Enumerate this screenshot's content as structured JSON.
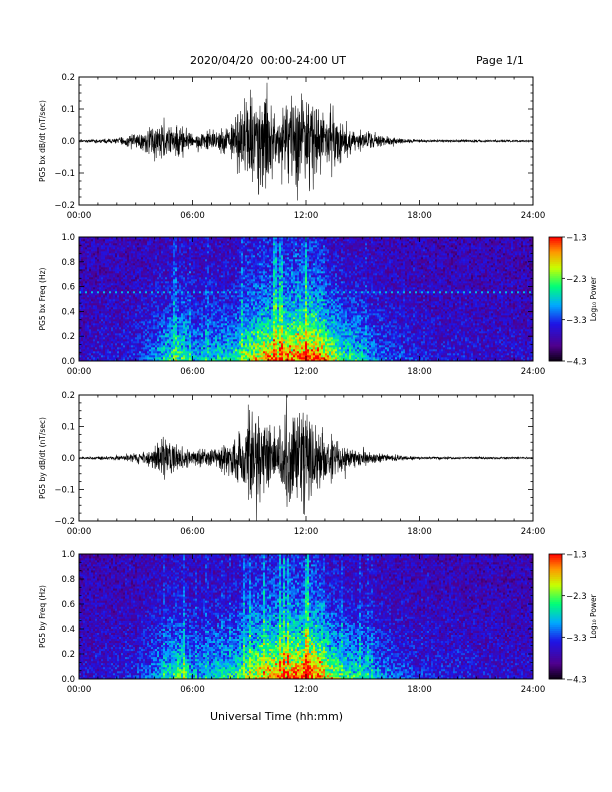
{
  "header": {
    "title": "2020/04/20  00:00-24:00 UT",
    "page": "Page 1/1"
  },
  "footer": {
    "xlabel": "Universal Time (hh:mm)"
  },
  "chart_data": [
    {
      "type": "line",
      "ylabel": "PG5 bx dB/dt (nT/sec)",
      "ylim": [
        -0.2,
        0.2
      ],
      "yticks": [
        "0.2",
        "0.1",
        "0.0",
        "-0.1",
        "-0.2"
      ],
      "xlim": [
        0,
        24
      ],
      "xticks": [
        "00:00",
        "06:00",
        "12:00",
        "18:00",
        "24:00"
      ],
      "envelope_hours": [
        0,
        2,
        3,
        4,
        4.5,
        5,
        5.5,
        6,
        7,
        8,
        8.5,
        9,
        9.5,
        10,
        10.5,
        11,
        11.5,
        12,
        12.5,
        13,
        13.5,
        14,
        15,
        16,
        17,
        18,
        24
      ],
      "envelope_amplitude": [
        0.005,
        0.01,
        0.03,
        0.05,
        0.07,
        0.06,
        0.06,
        0.03,
        0.04,
        0.06,
        0.12,
        0.19,
        0.2,
        0.17,
        0.08,
        0.14,
        0.18,
        0.19,
        0.15,
        0.1,
        0.12,
        0.07,
        0.04,
        0.02,
        0.01,
        0.005,
        0.004
      ]
    },
    {
      "type": "heatmap",
      "ylabel": "PG5 bx Freq (Hz)",
      "ylim": [
        0,
        1.0
      ],
      "yticks": [
        "1.0",
        "0.8",
        "0.6",
        "0.4",
        "0.2",
        "0.0"
      ],
      "xlim": [
        0,
        24
      ],
      "xticks": [
        "00:00",
        "06:00",
        "12:00",
        "18:00",
        "24:00"
      ],
      "colorbar": {
        "label": "Log₁₀ Power",
        "ticks": [
          "-1.3",
          "-2.3",
          "-3.3",
          "-4.3"
        ],
        "range": [
          -4.3,
          -1.3
        ]
      },
      "interference_line_hz": 0.56,
      "activity_hours": [
        0,
        3,
        4,
        5,
        5.5,
        6,
        8,
        9,
        10,
        11,
        12,
        13,
        14,
        15,
        16,
        18,
        24
      ],
      "activity_level": [
        0.05,
        0.12,
        0.25,
        0.45,
        0.5,
        0.3,
        0.4,
        0.55,
        0.7,
        0.75,
        0.85,
        0.7,
        0.45,
        0.35,
        0.2,
        0.1,
        0.05
      ]
    },
    {
      "type": "line",
      "ylabel": "PG5 by dB/dt (nT/sec)",
      "ylim": [
        -0.2,
        0.2
      ],
      "yticks": [
        "0.2",
        "0.1",
        "0.0",
        "-0.1",
        "-0.2"
      ],
      "xlim": [
        0,
        24
      ],
      "xticks": [
        "00:00",
        "06:00",
        "12:00",
        "18:00",
        "24:00"
      ],
      "envelope_hours": [
        0,
        2,
        3,
        4,
        4.5,
        5,
        5.5,
        6,
        7,
        8,
        8.5,
        9,
        9.5,
        10,
        10.5,
        11,
        11.5,
        12,
        12.5,
        13,
        13.5,
        14,
        15,
        16,
        17,
        18,
        24
      ],
      "envelope_amplitude": [
        0.004,
        0.008,
        0.02,
        0.04,
        0.08,
        0.06,
        0.05,
        0.03,
        0.04,
        0.06,
        0.1,
        0.19,
        0.2,
        0.15,
        0.09,
        0.18,
        0.2,
        0.2,
        0.14,
        0.1,
        0.08,
        0.05,
        0.03,
        0.015,
        0.01,
        0.005,
        0.004
      ]
    },
    {
      "type": "heatmap",
      "ylabel": "PG5 by Freq (Hz)",
      "ylim": [
        0,
        1.0
      ],
      "yticks": [
        "1.0",
        "0.8",
        "0.6",
        "0.4",
        "0.2",
        "0.0"
      ],
      "xlim": [
        0,
        24
      ],
      "xticks": [
        "00:00",
        "06:00",
        "12:00",
        "18:00",
        "24:00"
      ],
      "colorbar": {
        "label": "Log₁₀ Power",
        "ticks": [
          "-1.3",
          "-2.3",
          "-3.3",
          "-4.3"
        ],
        "range": [
          -4.3,
          -1.3
        ]
      },
      "activity_hours": [
        0,
        3,
        4,
        5,
        5.5,
        6,
        8,
        9,
        10,
        11,
        12,
        13,
        14,
        15,
        16,
        18,
        24
      ],
      "activity_level": [
        0.05,
        0.12,
        0.25,
        0.45,
        0.5,
        0.3,
        0.4,
        0.55,
        0.7,
        0.75,
        0.85,
        0.7,
        0.45,
        0.4,
        0.25,
        0.12,
        0.05
      ]
    }
  ]
}
